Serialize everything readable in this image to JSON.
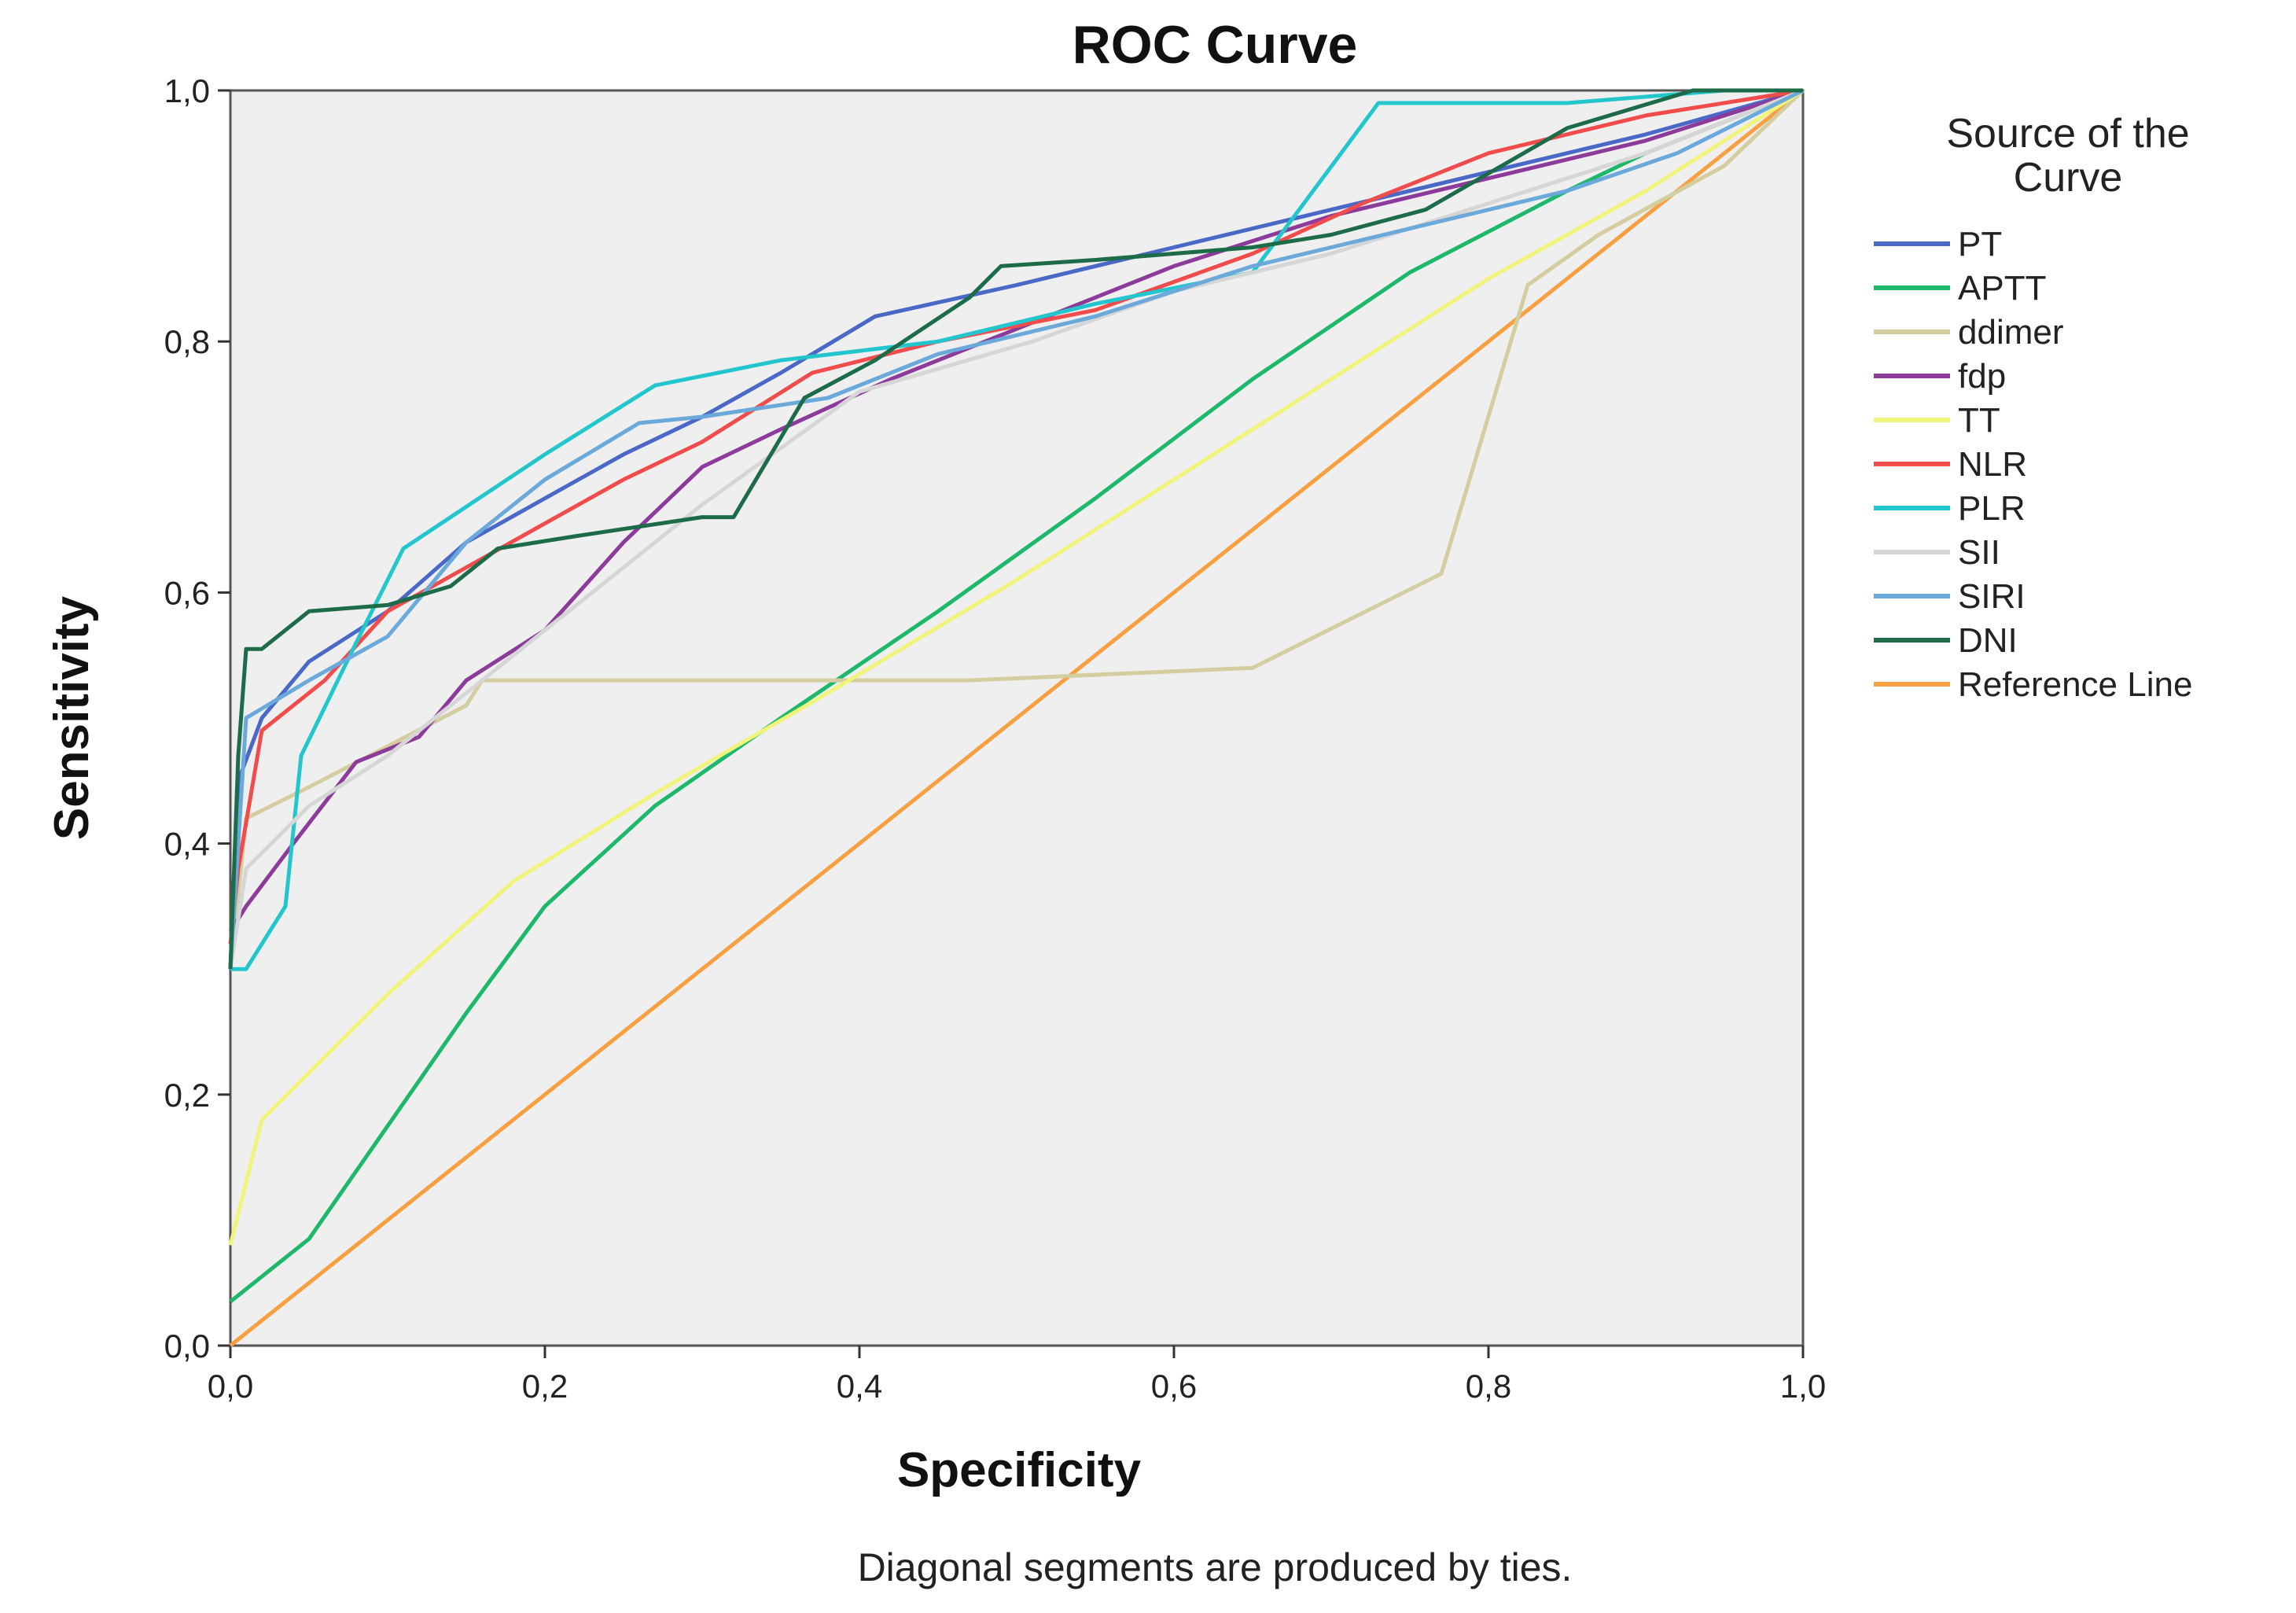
{
  "chart_data": {
    "type": "line",
    "title": "ROC Curve",
    "xlabel": "Specificity",
    "ylabel": "Sensitivity",
    "xlim": [
      0,
      1
    ],
    "ylim": [
      0,
      1
    ],
    "xticks": [
      "0,0",
      "0,2",
      "0,4",
      "0,6",
      "0,8",
      "1,0"
    ],
    "yticks": [
      "0,0",
      "0,2",
      "0,4",
      "0,6",
      "0,8",
      "1,0"
    ],
    "legend_title": "Source of the Curve",
    "legend_title_lines": [
      "Source of the",
      "Curve"
    ],
    "legend_position": "right",
    "footnote": "Diagonal segments are produced by ties.",
    "grid": false,
    "series": [
      {
        "name": "PT",
        "color": "#4a68c6",
        "points": [
          [
            0,
            0.3
          ],
          [
            0.005,
            0.45
          ],
          [
            0.02,
            0.5
          ],
          [
            0.05,
            0.545
          ],
          [
            0.1,
            0.585
          ],
          [
            0.15,
            0.64
          ],
          [
            0.2,
            0.675
          ],
          [
            0.25,
            0.71
          ],
          [
            0.3,
            0.74
          ],
          [
            0.35,
            0.775
          ],
          [
            0.41,
            0.82
          ],
          [
            0.5,
            0.845
          ],
          [
            0.6,
            0.875
          ],
          [
            0.7,
            0.905
          ],
          [
            0.8,
            0.935
          ],
          [
            0.9,
            0.965
          ],
          [
            1,
            1
          ]
        ]
      },
      {
        "name": "APTT",
        "color": "#1db86a",
        "points": [
          [
            0,
            0.035
          ],
          [
            0.05,
            0.085
          ],
          [
            0.1,
            0.175
          ],
          [
            0.15,
            0.265
          ],
          [
            0.2,
            0.35
          ],
          [
            0.27,
            0.43
          ],
          [
            0.35,
            0.5
          ],
          [
            0.45,
            0.585
          ],
          [
            0.55,
            0.675
          ],
          [
            0.65,
            0.77
          ],
          [
            0.75,
            0.855
          ],
          [
            0.85,
            0.92
          ],
          [
            0.9,
            0.95
          ],
          [
            1,
            1
          ]
        ]
      },
      {
        "name": "ddimer",
        "color": "#d3cda0",
        "points": [
          [
            0,
            0.3
          ],
          [
            0.01,
            0.42
          ],
          [
            0.05,
            0.445
          ],
          [
            0.15,
            0.51
          ],
          [
            0.16,
            0.53
          ],
          [
            0.3,
            0.53
          ],
          [
            0.47,
            0.53
          ],
          [
            0.65,
            0.54
          ],
          [
            0.77,
            0.615
          ],
          [
            0.825,
            0.845
          ],
          [
            0.87,
            0.885
          ],
          [
            0.95,
            0.94
          ],
          [
            1,
            1
          ]
        ]
      },
      {
        "name": "fdp",
        "color": "#8d3b9a",
        "points": [
          [
            0,
            0.33
          ],
          [
            0.01,
            0.35
          ],
          [
            0.04,
            0.4
          ],
          [
            0.08,
            0.465
          ],
          [
            0.12,
            0.485
          ],
          [
            0.15,
            0.53
          ],
          [
            0.2,
            0.57
          ],
          [
            0.25,
            0.64
          ],
          [
            0.3,
            0.7
          ],
          [
            0.35,
            0.73
          ],
          [
            0.42,
            0.77
          ],
          [
            0.5,
            0.81
          ],
          [
            0.6,
            0.86
          ],
          [
            0.7,
            0.9
          ],
          [
            0.8,
            0.93
          ],
          [
            0.9,
            0.96
          ],
          [
            1,
            1
          ]
        ]
      },
      {
        "name": "TT",
        "color": "#f1f47a",
        "points": [
          [
            0,
            0.08
          ],
          [
            0.02,
            0.18
          ],
          [
            0.1,
            0.28
          ],
          [
            0.18,
            0.37
          ],
          [
            0.27,
            0.44
          ],
          [
            0.38,
            0.52
          ],
          [
            0.5,
            0.61
          ],
          [
            0.6,
            0.69
          ],
          [
            0.7,
            0.77
          ],
          [
            0.8,
            0.85
          ],
          [
            0.9,
            0.92
          ],
          [
            1,
            1
          ]
        ]
      },
      {
        "name": "NLR",
        "color": "#f14c4c",
        "points": [
          [
            0,
            0.32
          ],
          [
            0.005,
            0.38
          ],
          [
            0.02,
            0.49
          ],
          [
            0.06,
            0.53
          ],
          [
            0.1,
            0.585
          ],
          [
            0.15,
            0.62
          ],
          [
            0.2,
            0.655
          ],
          [
            0.25,
            0.69
          ],
          [
            0.3,
            0.72
          ],
          [
            0.37,
            0.775
          ],
          [
            0.45,
            0.8
          ],
          [
            0.55,
            0.825
          ],
          [
            0.65,
            0.87
          ],
          [
            0.72,
            0.91
          ],
          [
            0.8,
            0.95
          ],
          [
            0.9,
            0.98
          ],
          [
            1,
            1
          ]
        ]
      },
      {
        "name": "PLR",
        "color": "#22c6cc",
        "points": [
          [
            0,
            0.3
          ],
          [
            0.01,
            0.3
          ],
          [
            0.035,
            0.35
          ],
          [
            0.045,
            0.47
          ],
          [
            0.08,
            0.56
          ],
          [
            0.11,
            0.635
          ],
          [
            0.2,
            0.71
          ],
          [
            0.27,
            0.765
          ],
          [
            0.35,
            0.785
          ],
          [
            0.45,
            0.8
          ],
          [
            0.55,
            0.83
          ],
          [
            0.65,
            0.855
          ],
          [
            0.73,
            0.99
          ],
          [
            0.85,
            0.99
          ],
          [
            0.95,
            1
          ],
          [
            1,
            1
          ]
        ]
      },
      {
        "name": "SII",
        "color": "#d6d6d6",
        "points": [
          [
            0,
            0.3
          ],
          [
            0.01,
            0.38
          ],
          [
            0.05,
            0.43
          ],
          [
            0.1,
            0.47
          ],
          [
            0.2,
            0.57
          ],
          [
            0.3,
            0.67
          ],
          [
            0.4,
            0.76
          ],
          [
            0.51,
            0.8
          ],
          [
            0.6,
            0.84
          ],
          [
            0.7,
            0.87
          ],
          [
            0.8,
            0.91
          ],
          [
            0.9,
            0.95
          ],
          [
            1,
            1
          ]
        ]
      },
      {
        "name": "SIRI",
        "color": "#6ba9da",
        "points": [
          [
            0,
            0.3
          ],
          [
            0.01,
            0.5
          ],
          [
            0.05,
            0.53
          ],
          [
            0.1,
            0.565
          ],
          [
            0.15,
            0.64
          ],
          [
            0.2,
            0.69
          ],
          [
            0.26,
            0.735
          ],
          [
            0.3,
            0.74
          ],
          [
            0.38,
            0.755
          ],
          [
            0.45,
            0.79
          ],
          [
            0.55,
            0.82
          ],
          [
            0.65,
            0.86
          ],
          [
            0.75,
            0.89
          ],
          [
            0.85,
            0.92
          ],
          [
            0.92,
            0.95
          ],
          [
            1,
            1
          ]
        ]
      },
      {
        "name": "DNI",
        "color": "#1c6b49",
        "points": [
          [
            0,
            0.3
          ],
          [
            0.005,
            0.47
          ],
          [
            0.01,
            0.555
          ],
          [
            0.02,
            0.555
          ],
          [
            0.05,
            0.585
          ],
          [
            0.1,
            0.59
          ],
          [
            0.14,
            0.605
          ],
          [
            0.17,
            0.635
          ],
          [
            0.22,
            0.645
          ],
          [
            0.3,
            0.66
          ],
          [
            0.32,
            0.66
          ],
          [
            0.365,
            0.755
          ],
          [
            0.41,
            0.785
          ],
          [
            0.47,
            0.835
          ],
          [
            0.49,
            0.86
          ],
          [
            0.55,
            0.865
          ],
          [
            0.6,
            0.87
          ],
          [
            0.65,
            0.875
          ],
          [
            0.7,
            0.885
          ],
          [
            0.76,
            0.905
          ],
          [
            0.85,
            0.97
          ],
          [
            0.93,
            1
          ],
          [
            1,
            1
          ]
        ]
      },
      {
        "name": "Reference Line",
        "color": "#f7a042",
        "points": [
          [
            0,
            0
          ],
          [
            1,
            1
          ]
        ]
      }
    ]
  }
}
